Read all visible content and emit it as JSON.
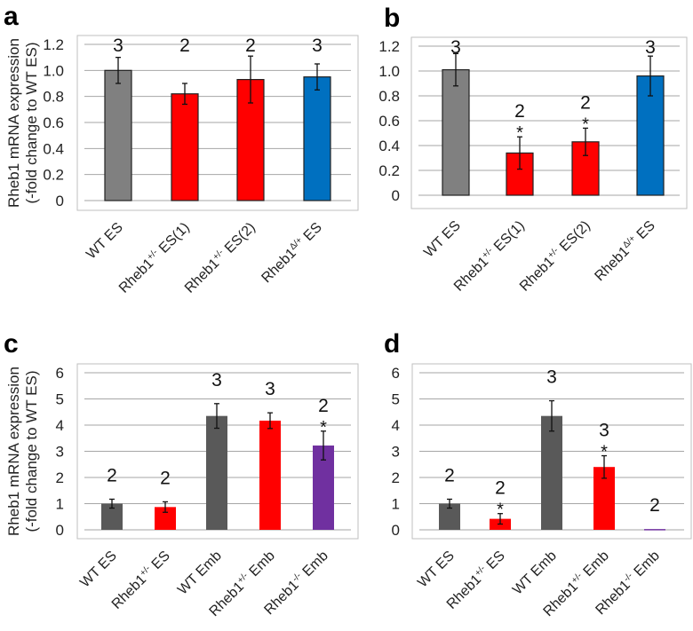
{
  "ylabel_line1": "Rheb1 mRNA expression",
  "ylabel_line2": "(-fold change to WT ES)",
  "chart_data": [
    {
      "panel": "a",
      "type": "bar",
      "ylim": [
        0,
        1.2
      ],
      "yticks": [
        "0",
        "0.2",
        "0.4",
        "0.6",
        "0.8",
        "1.0",
        "1.2"
      ],
      "ytick_values": [
        0,
        0.2,
        0.4,
        0.6,
        0.8,
        1.0,
        1.2
      ],
      "grid": true,
      "bars": [
        {
          "label": {
            "base": "WT ES",
            "sup": "",
            "rest": ""
          },
          "value": 1.0,
          "error": 0.1,
          "n": "3",
          "star": "",
          "color": "#808080"
        },
        {
          "label": {
            "base": "Rheb1",
            "sup": "+/-",
            "rest": " ES(1)"
          },
          "value": 0.82,
          "error": 0.08,
          "n": "2",
          "star": "",
          "color": "#ff0000"
        },
        {
          "label": {
            "base": "Rheb1",
            "sup": "+/-",
            "rest": " ES(2)"
          },
          "value": 0.93,
          "error": 0.18,
          "n": "2",
          "star": "",
          "color": "#ff0000"
        },
        {
          "label": {
            "base": "Rheb1",
            "sup": "Δ/+",
            "rest": " ES"
          },
          "value": 0.95,
          "error": 0.1,
          "n": "3",
          "star": "",
          "color": "#0070c0"
        }
      ]
    },
    {
      "panel": "b",
      "type": "bar",
      "ylim": [
        0,
        1.2
      ],
      "yticks": [
        "0",
        "0.2",
        "0.4",
        "0.6",
        "0.8",
        "1.0",
        "1.2"
      ],
      "ytick_values": [
        0,
        0.2,
        0.4,
        0.6,
        0.8,
        1.0,
        1.2
      ],
      "grid": true,
      "bars": [
        {
          "label": {
            "base": "WT ES",
            "sup": "",
            "rest": ""
          },
          "value": 1.01,
          "error": 0.13,
          "n": "3",
          "star": "",
          "color": "#808080"
        },
        {
          "label": {
            "base": "Rheb1",
            "sup": "+/-",
            "rest": " ES(1)"
          },
          "value": 0.34,
          "error": 0.13,
          "n": "2",
          "star": "*",
          "color": "#ff0000"
        },
        {
          "label": {
            "base": "Rheb1",
            "sup": "+/-",
            "rest": " ES(2)"
          },
          "value": 0.43,
          "error": 0.11,
          "n": "2",
          "star": "*",
          "color": "#ff0000"
        },
        {
          "label": {
            "base": "Rheb1",
            "sup": "Δ/+",
            "rest": " ES"
          },
          "value": 0.96,
          "error": 0.16,
          "n": "3",
          "star": "",
          "color": "#0070c0"
        }
      ]
    },
    {
      "panel": "c",
      "type": "bar",
      "ylim": [
        0,
        6
      ],
      "yticks": [
        "0",
        "1",
        "2",
        "3",
        "4",
        "5",
        "6"
      ],
      "ytick_values": [
        0,
        1,
        2,
        3,
        4,
        5,
        6
      ],
      "grid": true,
      "bars": [
        {
          "label": {
            "base": "WT ES",
            "sup": "",
            "rest": ""
          },
          "value": 1.0,
          "error": 0.17,
          "n": "2",
          "star": "",
          "color": "#595959"
        },
        {
          "label": {
            "base": "Rheb1",
            "sup": "+/-",
            "rest": " ES"
          },
          "value": 0.87,
          "error": 0.2,
          "n": "2",
          "star": "",
          "color": "#ff0000"
        },
        {
          "label": {
            "base": "WT Emb",
            "sup": "",
            "rest": ""
          },
          "value": 4.35,
          "error": 0.47,
          "n": "3",
          "star": "",
          "color": "#595959"
        },
        {
          "label": {
            "base": "Rheb1",
            "sup": "+/-",
            "rest": " Emb"
          },
          "value": 4.17,
          "error": 0.3,
          "n": "3",
          "star": "",
          "color": "#ff0000"
        },
        {
          "label": {
            "base": "Rheb1",
            "sup": "-/-",
            "rest": " Emb"
          },
          "value": 3.22,
          "error": 0.55,
          "n": "2",
          "star": "*",
          "color": "#7030a0"
        }
      ]
    },
    {
      "panel": "d",
      "type": "bar",
      "ylim": [
        0,
        6
      ],
      "yticks": [
        "0",
        "1",
        "2",
        "3",
        "4",
        "5",
        "6"
      ],
      "ytick_values": [
        0,
        1,
        2,
        3,
        4,
        5,
        6
      ],
      "grid": true,
      "bars": [
        {
          "label": {
            "base": "WT ES",
            "sup": "",
            "rest": ""
          },
          "value": 1.0,
          "error": 0.17,
          "n": "2",
          "star": "",
          "color": "#595959"
        },
        {
          "label": {
            "base": "Rheb1",
            "sup": "+/-",
            "rest": " ES"
          },
          "value": 0.42,
          "error": 0.2,
          "n": "2",
          "star": "*",
          "color": "#ff0000"
        },
        {
          "label": {
            "base": "WT Emb",
            "sup": "",
            "rest": ""
          },
          "value": 4.35,
          "error": 0.58,
          "n": "3",
          "star": "",
          "color": "#595959"
        },
        {
          "label": {
            "base": "Rheb1",
            "sup": "+/-",
            "rest": " Emb"
          },
          "value": 2.4,
          "error": 0.43,
          "n": "3",
          "star": "*",
          "color": "#ff0000"
        },
        {
          "label": {
            "base": "Rheb1",
            "sup": "-/-",
            "rest": " Emb"
          },
          "value": 0.03,
          "error": 0,
          "n": "2",
          "star": "",
          "color": "#7030a0"
        }
      ]
    }
  ]
}
